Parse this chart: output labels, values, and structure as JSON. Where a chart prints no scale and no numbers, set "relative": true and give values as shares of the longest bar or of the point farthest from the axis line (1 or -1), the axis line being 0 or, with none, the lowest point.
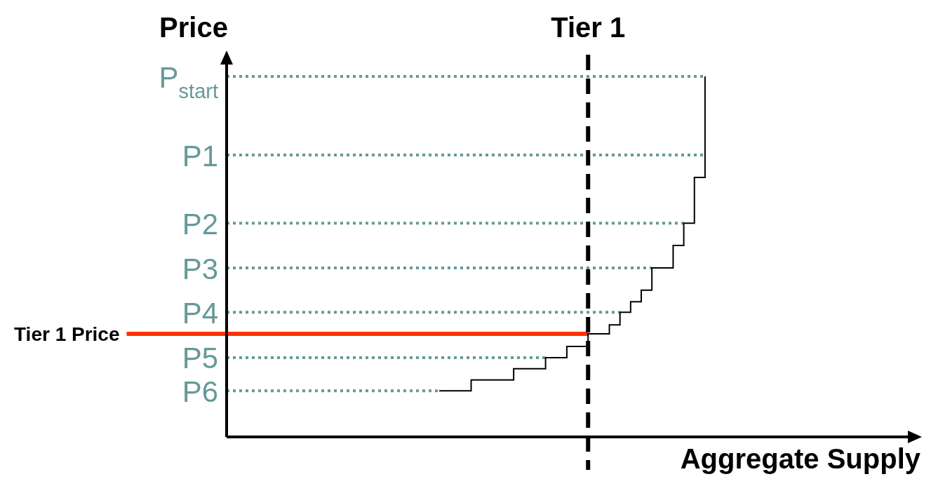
{
  "chart_data": {
    "type": "step",
    "relative": true,
    "annotations": [
      "Tier 1"
    ],
    "xlabel": "Aggregate Supply",
    "ylabel": "Price",
    "marker": "none",
    "categories": [
      null,
      null,
      null,
      null,
      null,
      null,
      null,
      null,
      null,
      null,
      null,
      null,
      null,
      null,
      null,
      null,
      null,
      null,
      null,
      null,
      null,
      null,
      null,
      null,
      null,
      null,
      null,
      null,
      null,
      null,
      null,
      null,
      null,
      null,
      null,
      null,
      null,
      null,
      null,
      null,
      null,
      null,
      null,
      null,
      null,
      null,
      null,
      null,
      null,
      null,
      null,
      null,
      null,
      null,
      null,
      null,
      null,
      null,
      null,
      null,
      null,
      null,
      null,
      null,
      null,
      null
    ],
    "series": [
      {
        "color": "#000000",
        "values": [
          null,
          null,
          null,
          null,
          null,
          null,
          null,
          null,
          null,
          null,
          null,
          null,
          null,
          null,
          null,
          null,
          null,
          null,
          null,
          null,
          0.128,
          null,
          null,
          0.158,
          null,
          null,
          null,
          0.189,
          null,
          null,
          0.22,
          null,
          0.251,
          null,
          0.286,
          null,
          0.311,
          0.346,
          0.375,
          0.407,
          0.469,
          null,
          0.531,
          0.593,
          0.72,
          1.0,
          null,
          null,
          null,
          null,
          null,
          null,
          null,
          null,
          null,
          null,
          null,
          null,
          null,
          null,
          null,
          null,
          null,
          null,
          null,
          null
        ]
      }
    ],
    "ref_lines": [
      {
        "axis": "y",
        "value": 1.0,
        "label": "P$_{start}$",
        "color": "#669999",
        "line_style": "dotted"
      },
      {
        "axis": "y",
        "value": 0.782,
        "label": "P1",
        "color": "#669999",
        "line_style": "dotted"
      },
      {
        "axis": "y",
        "value": 0.593,
        "label": "P2",
        "color": "#669999",
        "line_style": "dotted"
      },
      {
        "axis": "y",
        "value": 0.469,
        "label": "P3",
        "color": "#669999",
        "line_style": "dotted"
      },
      {
        "axis": "y",
        "value": 0.346,
        "label": "P4",
        "color": "#669999",
        "line_style": "dotted"
      },
      {
        "axis": "y",
        "value": 0.22,
        "label": "P5",
        "color": "#669999",
        "line_style": "dotted"
      },
      {
        "axis": "y",
        "value": 0.128,
        "label": "P6",
        "color": "#669999",
        "line_style": "dotted"
      },
      {
        "axis": "y",
        "value": 0.286,
        "label": "Tier 1 Price",
        "color": "#ff3300",
        "line_style": "solid"
      }
    ]
  }
}
